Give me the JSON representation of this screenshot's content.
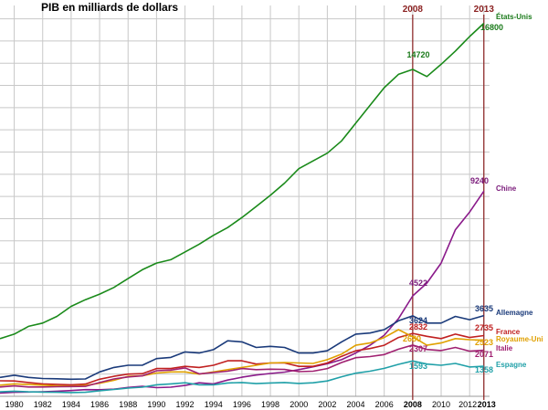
{
  "chart_data": {
    "type": "line",
    "title": "PIB en milliards de dollars",
    "xlabel": "",
    "ylabel": "",
    "xlim": [
      1979,
      2013.4
    ],
    "ylim": [
      0,
      17600
    ],
    "grid": true,
    "x_ticks": [
      "1980",
      "1982",
      "1984",
      "1986",
      "1988",
      "1990",
      "1992",
      "1994",
      "1996",
      "1998",
      "2000",
      "2002",
      "2004",
      "2006",
      "2008",
      "2010",
      "2012",
      "2013"
    ],
    "marker_years": [
      "2008",
      "2013"
    ],
    "marker_color": "#8a1f1f",
    "years": [
      1979,
      1980,
      1981,
      1982,
      1983,
      1984,
      1985,
      1986,
      1987,
      1988,
      1989,
      1990,
      1991,
      1992,
      1993,
      1994,
      1995,
      1996,
      1997,
      1998,
      1999,
      2000,
      2001,
      2002,
      2003,
      2004,
      2005,
      2006,
      2007,
      2008,
      2009,
      2010,
      2011,
      2012,
      2013
    ],
    "series": [
      {
        "name": "États-Unis",
        "color": "#1a8a1a",
        "label_color": "#1a7a1a",
        "end_label": "16800",
        "year_label": "14720",
        "values": [
          2600,
          2800,
          3150,
          3300,
          3600,
          4050,
          4350,
          4600,
          4900,
          5300,
          5700,
          6000,
          6150,
          6500,
          6850,
          7250,
          7600,
          8050,
          8550,
          9050,
          9600,
          10250,
          10600,
          10950,
          11500,
          12300,
          13100,
          13900,
          14500,
          14720,
          14400,
          14950,
          15550,
          16200,
          16800
        ]
      },
      {
        "name": "Chine",
        "color": "#8a1a8a",
        "label_color": "#7a1a7a",
        "end_label": "9240",
        "year_label": "4522",
        "values": [
          150,
          180,
          195,
          205,
          230,
          260,
          300,
          295,
          320,
          400,
          450,
          390,
          410,
          490,
          610,
          560,
          730,
          860,
          960,
          1030,
          1090,
          1200,
          1330,
          1470,
          1650,
          1950,
          2300,
          2750,
          3500,
          4522,
          5100,
          6000,
          7500,
          8300,
          9240
        ]
      },
      {
        "name": "Allemagne",
        "color": "#1a3a7a",
        "label_color": "#1a3a7a",
        "end_label": "3635",
        "year_label": "3624",
        "values": [
          850,
          950,
          850,
          800,
          790,
          770,
          780,
          1100,
          1300,
          1400,
          1400,
          1700,
          1750,
          2000,
          1950,
          2100,
          2500,
          2450,
          2200,
          2250,
          2200,
          1950,
          1950,
          2050,
          2450,
          2800,
          2850,
          3000,
          3400,
          3624,
          3300,
          3300,
          3600,
          3450,
          3635
        ]
      },
      {
        "name": "France",
        "color": "#c02020",
        "label_color": "#c02020",
        "end_label": "2735",
        "year_label": "2832",
        "values": [
          700,
          690,
          620,
          560,
          540,
          520,
          550,
          770,
          900,
          1000,
          1020,
          1250,
          1250,
          1350,
          1300,
          1400,
          1600,
          1600,
          1450,
          1500,
          1500,
          1350,
          1350,
          1500,
          1800,
          2050,
          2150,
          2300,
          2650,
          2832,
          2700,
          2600,
          2800,
          2650,
          2735
        ]
      },
      {
        "name": "Royaume-Uni",
        "color": "#e0a000",
        "label_color": "#e0a000",
        "end_label": "2523",
        "year_label": "2680",
        "values": [
          500,
          560,
          530,
          500,
          470,
          460,
          490,
          590,
          720,
          900,
          920,
          1050,
          1100,
          1100,
          1000,
          1100,
          1200,
          1300,
          1400,
          1500,
          1520,
          1500,
          1480,
          1650,
          1900,
          2300,
          2400,
          2650,
          3000,
          2680,
          2300,
          2400,
          2600,
          2550,
          2523
        ]
      },
      {
        "name": "Italie",
        "color": "#a02070",
        "label_color": "#a02070",
        "end_label": "2071",
        "year_label": "2307",
        "values": [
          420,
          470,
          420,
          420,
          430,
          440,
          450,
          620,
          780,
          870,
          920,
          1150,
          1180,
          1280,
          1010,
          1070,
          1130,
          1250,
          1200,
          1220,
          1210,
          1110,
          1130,
          1250,
          1520,
          1740,
          1790,
          1880,
          2120,
          2307,
          2110,
          2060,
          2200,
          2030,
          2071
        ]
      },
      {
        "name": "Espagne",
        "color": "#20a0a8",
        "label_color": "#20a0a8",
        "end_label": "1358",
        "year_label": "1593",
        "values": [
          200,
          230,
          200,
          190,
          180,
          170,
          180,
          250,
          310,
          370,
          410,
          520,
          560,
          610,
          520,
          520,
          600,
          620,
          570,
          600,
          620,
          580,
          610,
          690,
          880,
          1040,
          1130,
          1260,
          1440,
          1593,
          1450,
          1400,
          1480,
          1320,
          1358
        ]
      }
    ]
  }
}
